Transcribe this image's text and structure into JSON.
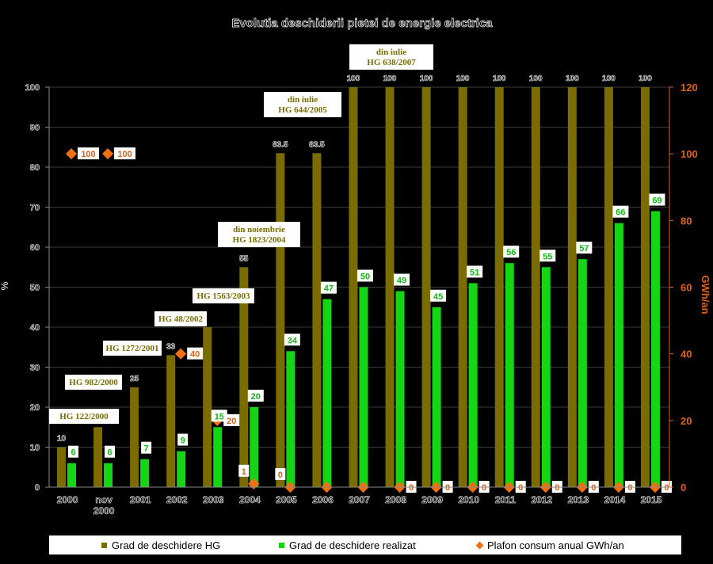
{
  "chart_data": {
    "type": "bar",
    "title": "Evolutia deschiderii pietei de energie electrica",
    "categories": [
      "2000",
      "nov 2000",
      "2001",
      "2002",
      "2003",
      "2004",
      "2005",
      "2006",
      "2007",
      "2008",
      "2009",
      "2010",
      "2011",
      "2012",
      "2013",
      "2014",
      "2015"
    ],
    "ylabel_left": "%",
    "ylabel_right": "GWh/an",
    "ylim_left": [
      0,
      100
    ],
    "ylim_right": [
      0,
      120
    ],
    "yticks_left": [
      "0",
      "10",
      "20",
      "30",
      "40",
      "50",
      "60",
      "70",
      "80",
      "90",
      "100"
    ],
    "yticks_right": [
      "0",
      "20",
      "40",
      "60",
      "80",
      "100",
      "120"
    ],
    "grid": true,
    "legend_position": "bottom",
    "series": [
      {
        "name": "Grad de deschidere HG",
        "axis": "left",
        "color": "#7a6c00",
        "values": [
          10,
          15,
          25,
          33,
          40,
          55,
          83.5,
          83.5,
          100,
          100,
          100,
          100,
          100,
          100,
          100,
          100,
          100
        ],
        "labels": [
          "10",
          "",
          "25",
          "33",
          "",
          "55",
          "83.5",
          "83.5",
          "100",
          "100",
          "100",
          "100",
          "100",
          "100",
          "100",
          "100",
          "100"
        ]
      },
      {
        "name": "Grad de deschidere realizat",
        "axis": "left",
        "color": "#14d614",
        "values": [
          6,
          6,
          7,
          9,
          15,
          20,
          34,
          47,
          50,
          49,
          45,
          51,
          56,
          55,
          57,
          66,
          69
        ],
        "labels": [
          "6",
          "6",
          "7",
          "9",
          "15",
          "20",
          "34",
          "47",
          "50",
          "49",
          "45",
          "51",
          "56",
          "55",
          "57",
          "66",
          "69"
        ]
      },
      {
        "name": "Plafon consum anual GWh/an",
        "axis": "right",
        "color": "#f07010",
        "values": [
          100,
          100,
          null,
          40,
          20,
          1,
          0,
          0,
          0,
          0,
          0,
          0,
          0,
          0,
          0,
          0,
          0
        ],
        "labels": [
          "100",
          "100",
          "",
          "40",
          "20",
          "1",
          "0",
          "",
          "",
          "0",
          "0",
          "0",
          "0",
          "0",
          "0",
          "0",
          "0"
        ]
      }
    ],
    "annotations": [
      {
        "category": "2000",
        "lines": [
          "HG 122/2000"
        ]
      },
      {
        "category": "nov 2000",
        "lines": [
          "HG 982/2000"
        ]
      },
      {
        "category": "2001",
        "lines": [
          "HG 1272/2001"
        ]
      },
      {
        "category": "2002",
        "lines": [
          "HG 48/2002"
        ]
      },
      {
        "category": "2003",
        "lines": [
          "HG 1563/2003"
        ]
      },
      {
        "category": "2004",
        "lines": [
          "din noiembrie",
          "HG 1823/2004"
        ]
      },
      {
        "category": "2005",
        "lines": [
          "din iulie",
          "HG 644/2005"
        ]
      },
      {
        "category": "2007",
        "lines": [
          "din iulie",
          "HG 638/2007"
        ]
      }
    ]
  }
}
